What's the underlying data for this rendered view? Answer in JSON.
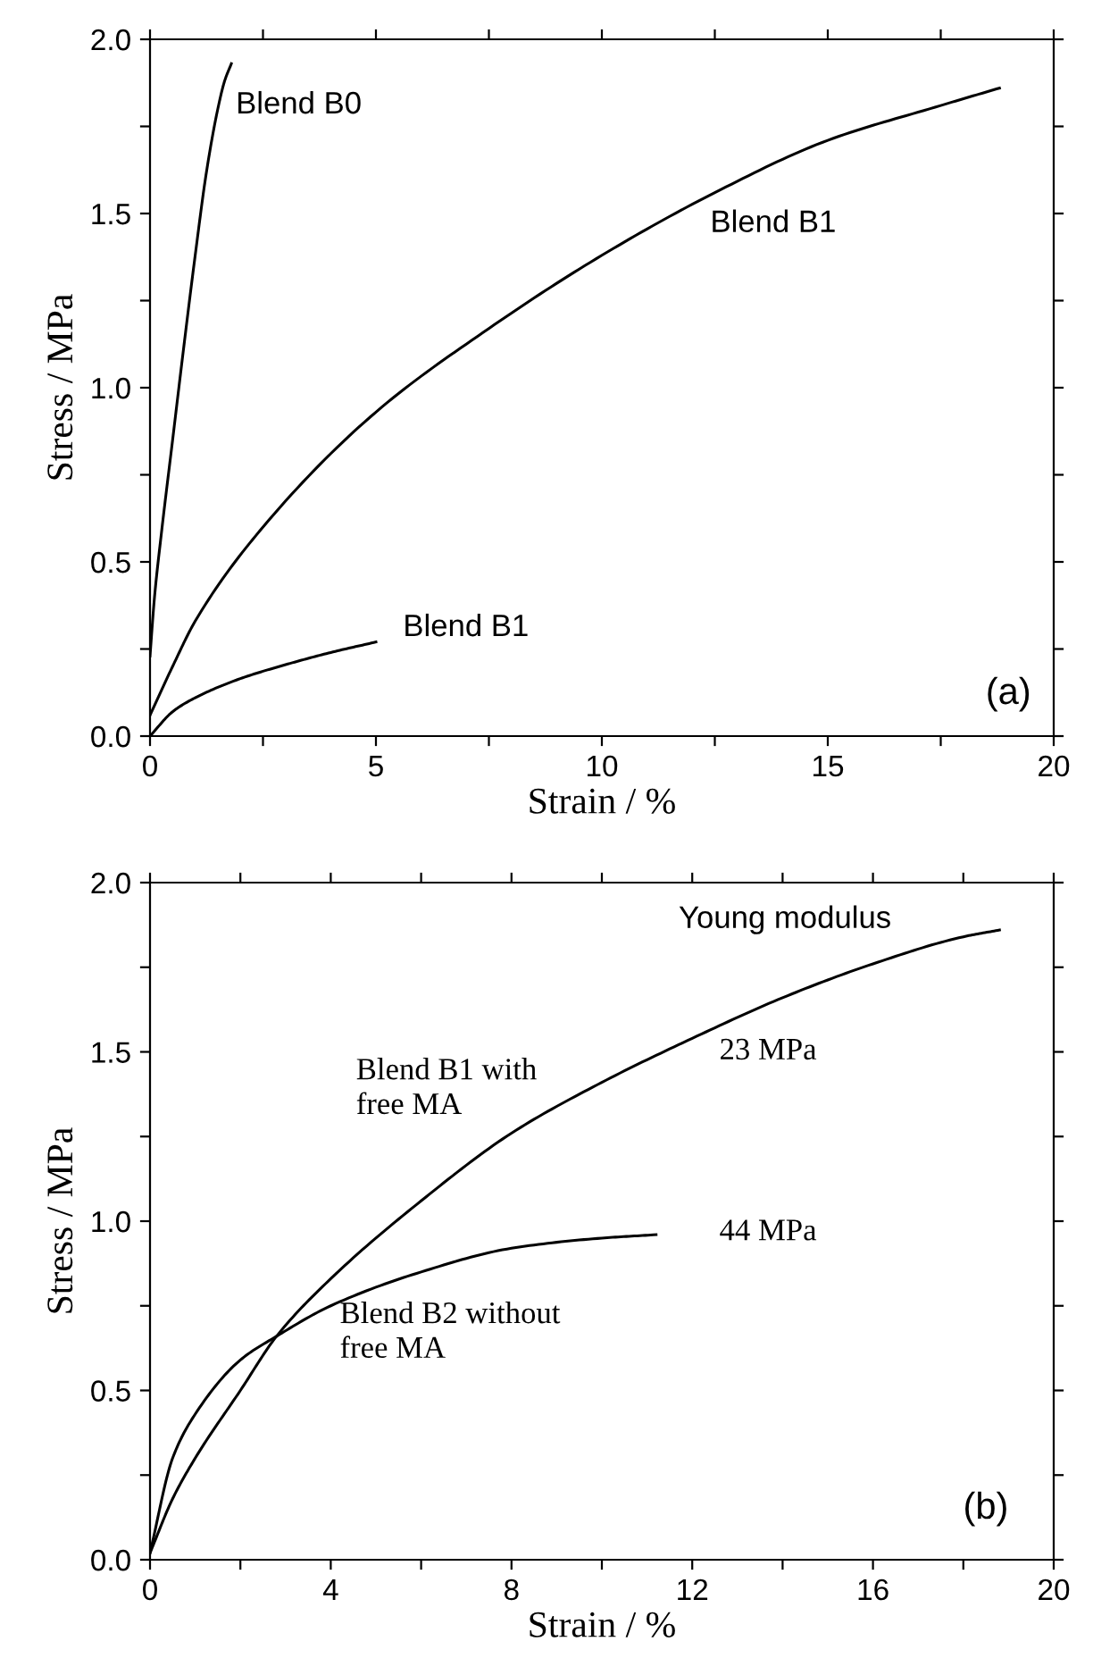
{
  "chart_data": [
    {
      "type": "line",
      "xlabel": "Strain / %",
      "ylabel": "Stress / MPa",
      "xlim": [
        0,
        20
      ],
      "ylim": [
        0,
        2.0
      ],
      "xticks": [
        {
          "value": 0,
          "label": "0"
        },
        {
          "value": 2.5,
          "label": null
        },
        {
          "value": 5,
          "label": "5"
        },
        {
          "value": 7.5,
          "label": null
        },
        {
          "value": 10,
          "label": "10"
        },
        {
          "value": 12.5,
          "label": null
        },
        {
          "value": 15,
          "label": "15"
        },
        {
          "value": 17.5,
          "label": null
        },
        {
          "value": 20,
          "label": "20"
        }
      ],
      "yticks": [
        {
          "value": 0,
          "label": "0.0"
        },
        {
          "value": 0.25,
          "label": null
        },
        {
          "value": 0.5,
          "label": "0.5"
        },
        {
          "value": 0.75,
          "label": null
        },
        {
          "value": 1,
          "label": "1.0"
        },
        {
          "value": 1.25,
          "label": null
        },
        {
          "value": 1.5,
          "label": "1.5"
        },
        {
          "value": 1.75,
          "label": null
        },
        {
          "value": 2,
          "label": "2.0"
        }
      ],
      "grid": false,
      "legend": false,
      "marker": "none",
      "line_style": "solid",
      "series": [
        {
          "color": "#000000",
          "x": [
            0,
            0.1,
            0.25,
            0.5,
            0.75,
            1.0,
            1.25,
            1.5,
            1.65,
            1.8
          ],
          "values": [
            0.23,
            0.4,
            0.58,
            0.85,
            1.12,
            1.38,
            1.62,
            1.8,
            1.88,
            1.93
          ]
        },
        {
          "color": "#000000",
          "x": [
            0,
            0.5,
            1,
            2.5,
            5,
            7.5,
            10,
            12.5,
            15,
            17.5,
            18.8
          ],
          "values": [
            0.06,
            0.2,
            0.33,
            0.6,
            0.93,
            1.17,
            1.38,
            1.56,
            1.71,
            1.81,
            1.86
          ]
        },
        {
          "color": "#000000",
          "x": [
            0,
            0.5,
            1,
            2,
            3,
            4,
            5
          ],
          "values": [
            0,
            0.07,
            0.11,
            0.165,
            0.205,
            0.24,
            0.27
          ]
        }
      ],
      "annotations": [
        "Blend B0",
        "Blend B1",
        "Blend B1",
        "(a)"
      ]
    },
    {
      "type": "line",
      "xlabel": "Strain / %",
      "ylabel": "Stress / MPa",
      "xlim": [
        0,
        20
      ],
      "ylim": [
        0,
        2.0
      ],
      "xticks": [
        0,
        {
          "value": 2,
          "label": null
        },
        4,
        {
          "value": 6,
          "label": null
        },
        8,
        {
          "value": 10,
          "label": null
        },
        12,
        {
          "value": 14,
          "label": null
        },
        16,
        {
          "value": 18,
          "label": null
        },
        20
      ],
      "yticks": [
        {
          "value": 0,
          "label": "0.0"
        },
        {
          "value": 0.25,
          "label": null
        },
        0.5,
        {
          "value": 0.75,
          "label": null
        },
        {
          "value": 1,
          "label": "1.0"
        },
        {
          "value": 1.25,
          "label": null
        },
        1.5,
        {
          "value": 1.75,
          "label": null
        },
        {
          "value": 2,
          "label": "2.0"
        }
      ],
      "grid": false,
      "legend": false,
      "marker": "none",
      "line_style": "solid",
      "series": [
        {
          "color": "#000000",
          "x": [
            0,
            0.5,
            1,
            2,
            2.8,
            4,
            6,
            8,
            10,
            12,
            14,
            16,
            18,
            18.8
          ],
          "values": [
            0.02,
            0.18,
            0.3,
            0.5,
            0.66,
            0.83,
            1.06,
            1.26,
            1.41,
            1.54,
            1.66,
            1.76,
            1.84,
            1.86
          ]
        },
        {
          "color": "#000000",
          "x": [
            0,
            0.5,
            1,
            2,
            2.8,
            4,
            6,
            8,
            10,
            11.2
          ],
          "values": [
            0.02,
            0.3,
            0.43,
            0.59,
            0.66,
            0.75,
            0.85,
            0.92,
            0.95,
            0.96
          ]
        }
      ],
      "annotations": [
        "Young modulus",
        "Blend B1 with\nfree MA",
        "23 MPa",
        "44 MPa",
        "Blend B2 without\nfree MA",
        "(b)"
      ]
    }
  ]
}
